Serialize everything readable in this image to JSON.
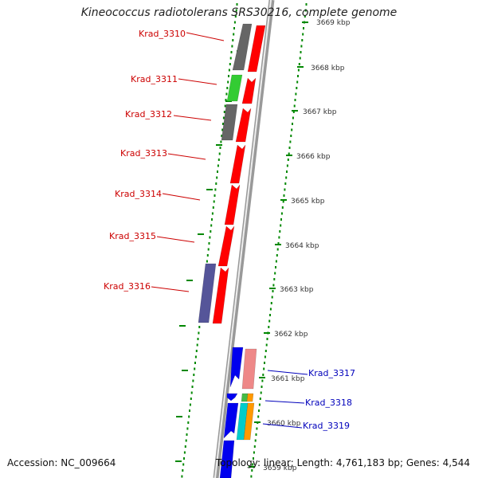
{
  "title": "Kineococcus radiotolerans SRS30216, complete genome",
  "footer": {
    "accession": "Accession: NC_009664",
    "summary": "Topology: linear; Length: 4,761,183 bp; Genes: 4,544"
  },
  "scale": {
    "ticks": [
      "3669 kbp",
      "3668 kbp",
      "3667 kbp",
      "3666 kbp",
      "3665 kbp",
      "3664 kbp",
      "3663 kbp",
      "3662 kbp",
      "3661 kbp",
      "3660 kbp",
      "3659 kbp"
    ]
  },
  "colors": {
    "forward_label": "#cc0000",
    "reverse_label": "#0000bb",
    "orf_dot": "#008800",
    "backbone": "#999999",
    "features": {
      "red": "#ff0000",
      "gray": "#666666",
      "green": "#33cc33",
      "navy": "#555599",
      "blue": "#0000ee",
      "pink": "#ee8888",
      "cyan": "#00cccc",
      "orange": "#ff9900",
      "lime": "#44bb44"
    }
  },
  "genes": [
    {
      "label": "Krad_3310",
      "strand": "forward"
    },
    {
      "label": "Krad_3311",
      "strand": "forward"
    },
    {
      "label": "Krad_3312",
      "strand": "forward"
    },
    {
      "label": "Krad_3313",
      "strand": "forward"
    },
    {
      "label": "Krad_3314",
      "strand": "forward"
    },
    {
      "label": "Krad_3315",
      "strand": "forward"
    },
    {
      "label": "Krad_3316",
      "strand": "forward"
    },
    {
      "label": "Krad_3317",
      "strand": "reverse"
    },
    {
      "label": "Krad_3318",
      "strand": "reverse"
    },
    {
      "label": "Krad_3319",
      "strand": "reverse"
    }
  ]
}
